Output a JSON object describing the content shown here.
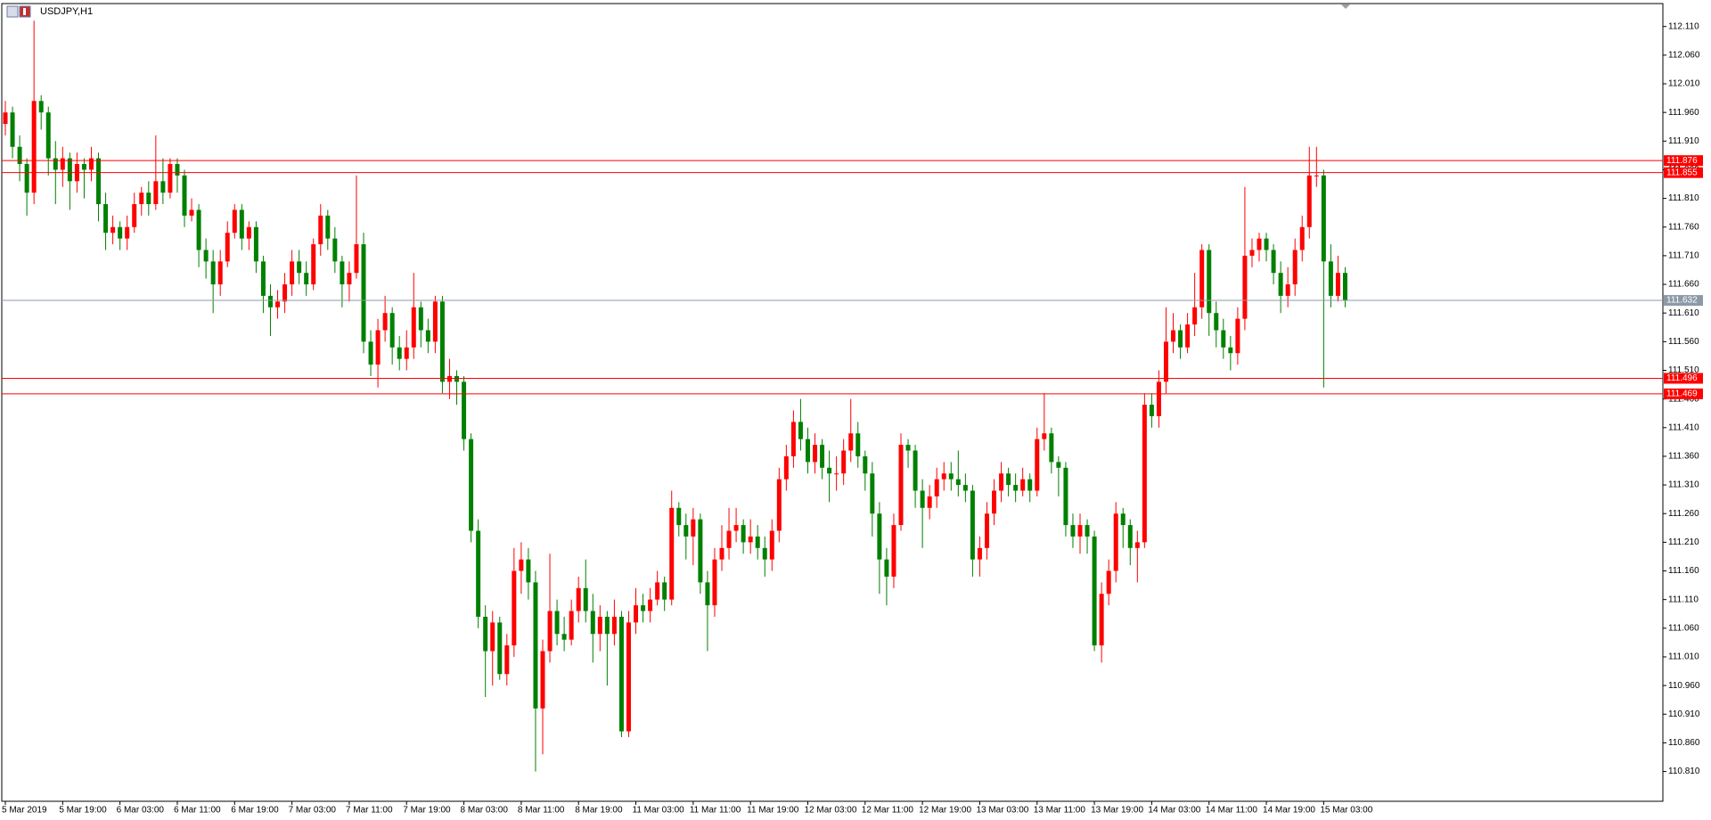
{
  "chart_data": {
    "type": "candlestick",
    "title": "USDJPY,H1",
    "up_color": "#ff0000",
    "down_color": "#008000",
    "ylim": [
      110.758,
      112.15
    ],
    "yticks": [
      {
        "value": 112.11,
        "label": "112.110"
      },
      {
        "value": 112.06,
        "label": "112.060"
      },
      {
        "value": 112.01,
        "label": "112.010"
      },
      {
        "value": 111.96,
        "label": "111.960"
      },
      {
        "value": 111.91,
        "label": "111.910"
      },
      {
        "value": 111.86,
        "label": "111.860"
      },
      {
        "value": 111.81,
        "label": "111.810"
      },
      {
        "value": 111.76,
        "label": "111.760"
      },
      {
        "value": 111.71,
        "label": "111.710"
      },
      {
        "value": 111.66,
        "label": "111.660"
      },
      {
        "value": 111.61,
        "label": "111.610"
      },
      {
        "value": 111.56,
        "label": "111.560"
      },
      {
        "value": 111.51,
        "label": "111.510"
      },
      {
        "value": 111.46,
        "label": "111.460"
      },
      {
        "value": 111.41,
        "label": "111.410"
      },
      {
        "value": 111.36,
        "label": "111.360"
      },
      {
        "value": 111.31,
        "label": "111.310"
      },
      {
        "value": 111.26,
        "label": "111.260"
      },
      {
        "value": 111.21,
        "label": "111.210"
      },
      {
        "value": 111.16,
        "label": "111.160"
      },
      {
        "value": 111.11,
        "label": "111.110"
      },
      {
        "value": 111.06,
        "label": "111.060"
      },
      {
        "value": 111.01,
        "label": "111.010"
      },
      {
        "value": 110.96,
        "label": "110.960"
      },
      {
        "value": 110.91,
        "label": "110.910"
      },
      {
        "value": 110.86,
        "label": "110.860"
      },
      {
        "value": 110.81,
        "label": "110.810"
      }
    ],
    "levels": [
      {
        "value": 111.876,
        "color": "#ff0000"
      },
      {
        "value": 111.855,
        "color": "#ff0000"
      },
      {
        "value": 111.496,
        "color": "#ff0000"
      },
      {
        "value": 111.469,
        "color": "#ff0000"
      },
      {
        "value": 111.632,
        "color": "#8c9aa8"
      }
    ],
    "categories": [
      "5 Mar 2019",
      null,
      null,
      null,
      null,
      null,
      null,
      null,
      "5 Mar 19:00",
      null,
      null,
      null,
      null,
      null,
      null,
      null,
      "6 Mar 03:00",
      null,
      null,
      null,
      null,
      null,
      null,
      null,
      "6 Mar 11:00",
      null,
      null,
      null,
      null,
      null,
      null,
      null,
      "6 Mar 19:00",
      null,
      null,
      null,
      null,
      null,
      null,
      null,
      "7 Mar 03:00",
      null,
      null,
      null,
      null,
      null,
      null,
      null,
      "7 Mar 11:00",
      null,
      null,
      null,
      null,
      null,
      null,
      null,
      "7 Mar 19:00",
      null,
      null,
      null,
      null,
      null,
      null,
      null,
      "8 Mar 03:00",
      null,
      null,
      null,
      null,
      null,
      null,
      null,
      "8 Mar 11:00",
      null,
      null,
      null,
      null,
      null,
      null,
      null,
      "8 Mar 19:00",
      null,
      null,
      null,
      null,
      null,
      null,
      null,
      "11 Mar 03:00",
      null,
      null,
      null,
      null,
      null,
      null,
      null,
      "11 Mar 11:00",
      null,
      null,
      null,
      null,
      null,
      null,
      null,
      "11 Mar 19:00",
      null,
      null,
      null,
      null,
      null,
      null,
      null,
      "12 Mar 03:00",
      null,
      null,
      null,
      null,
      null,
      null,
      null,
      "12 Mar 11:00",
      null,
      null,
      null,
      null,
      null,
      null,
      null,
      "12 Mar 19:00",
      null,
      null,
      null,
      null,
      null,
      null,
      null,
      "13 Mar 03:00",
      null,
      null,
      null,
      null,
      null,
      null,
      null,
      "13 Mar 11:00",
      null,
      null,
      null,
      null,
      null,
      null,
      null,
      "13 Mar 19:00",
      null,
      null,
      null,
      null,
      null,
      null,
      null,
      "14 Mar 03:00",
      null,
      null,
      null,
      null,
      null,
      null,
      null,
      "14 Mar 11:00",
      null,
      null,
      null,
      null,
      null,
      null,
      null,
      "14 Mar 19:00",
      null,
      null,
      null,
      null,
      null,
      null,
      null,
      "15 Mar 03:00",
      null,
      null,
      null
    ],
    "open": [
      111.94,
      111.96,
      111.9,
      111.87,
      111.82,
      111.98,
      111.96,
      111.88,
      111.86,
      111.88,
      111.84,
      111.87,
      111.86,
      111.88,
      111.8,
      111.75,
      111.76,
      111.74,
      111.76,
      111.8,
      111.82,
      111.8,
      111.84,
      111.82,
      111.87,
      111.85,
      111.78,
      111.79,
      111.72,
      111.7,
      111.66,
      111.7,
      111.75,
      111.79,
      111.74,
      111.76,
      111.7,
      111.64,
      111.62,
      111.63,
      111.66,
      111.7,
      111.68,
      111.66,
      111.73,
      111.78,
      111.74,
      111.7,
      111.66,
      111.68,
      111.73,
      111.56,
      111.52,
      111.58,
      111.61,
      111.55,
      111.53,
      111.55,
      111.62,
      111.58,
      111.56,
      111.63,
      111.49,
      111.5,
      111.49,
      111.39,
      111.23,
      111.08,
      111.02,
      111.07,
      110.98,
      111.03,
      111.16,
      111.18,
      111.14,
      110.92,
      111.02,
      111.09,
      111.05,
      111.04,
      111.09,
      111.13,
      111.09,
      111.05,
      111.08,
      111.05,
      111.08,
      110.88,
      111.07,
      111.1,
      111.09,
      111.11,
      111.14,
      111.11,
      111.27,
      111.24,
      111.22,
      111.25,
      111.14,
      111.1,
      111.18,
      111.2,
      111.23,
      111.24,
      111.21,
      111.22,
      111.2,
      111.18,
      111.23,
      111.32,
      111.36,
      111.42,
      111.39,
      111.35,
      111.38,
      111.34,
      111.33,
      111.33,
      111.37,
      111.4,
      111.36,
      111.33,
      111.26,
      111.18,
      111.15,
      111.24,
      111.38,
      111.37,
      111.3,
      111.27,
      111.29,
      111.32,
      111.33,
      111.32,
      111.31,
      111.3,
      111.18,
      111.2,
      111.26,
      111.3,
      111.33,
      111.31,
      111.3,
      111.32,
      111.3,
      111.39,
      111.4,
      111.35,
      111.34,
      111.24,
      111.22,
      111.24,
      111.22,
      111.03,
      111.12,
      111.16,
      111.26,
      111.24,
      111.2,
      111.21,
      111.45,
      111.43,
      111.49,
      111.56,
      111.58,
      111.55,
      111.59,
      111.62,
      111.72,
      111.61,
      111.58,
      111.55,
      111.54,
      111.6,
      111.71,
      111.72,
      111.74,
      111.72,
      111.68,
      111.64,
      111.66,
      111.72,
      111.76,
      111.85,
      111.85,
      111.7,
      111.64,
      111.68
    ],
    "high": [
      111.98,
      111.97,
      111.92,
      111.88,
      112.12,
      111.99,
      111.97,
      111.91,
      111.9,
      111.89,
      111.89,
      111.88,
      111.9,
      111.89,
      111.82,
      111.78,
      111.77,
      111.78,
      111.82,
      111.83,
      111.84,
      111.92,
      111.88,
      111.88,
      111.88,
      111.86,
      111.81,
      111.8,
      111.74,
      111.72,
      111.72,
      111.77,
      111.8,
      111.8,
      111.77,
      111.77,
      111.71,
      111.66,
      111.65,
      111.68,
      111.72,
      111.72,
      111.7,
      111.74,
      111.8,
      111.79,
      111.76,
      111.71,
      111.7,
      111.85,
      111.75,
      111.58,
      111.6,
      111.64,
      111.62,
      111.57,
      111.58,
      111.68,
      111.63,
      111.6,
      111.64,
      111.64,
      111.53,
      111.51,
      111.5,
      111.4,
      111.25,
      111.1,
      111.09,
      111.08,
      111.05,
      111.2,
      111.21,
      111.2,
      111.16,
      111.04,
      111.19,
      111.11,
      111.08,
      111.11,
      111.15,
      111.18,
      111.12,
      111.1,
      111.09,
      111.11,
      111.09,
      111.09,
      111.13,
      111.12,
      111.13,
      111.16,
      111.15,
      111.3,
      111.28,
      111.26,
      111.27,
      111.26,
      111.16,
      111.2,
      111.24,
      111.27,
      111.27,
      111.25,
      111.25,
      111.24,
      111.22,
      111.25,
      111.34,
      111.38,
      111.44,
      111.46,
      111.41,
      111.4,
      111.39,
      111.37,
      111.36,
      111.39,
      111.46,
      111.42,
      111.37,
      111.35,
      111.28,
      111.2,
      111.26,
      111.4,
      111.39,
      111.38,
      111.32,
      111.31,
      111.34,
      111.35,
      111.35,
      111.37,
      111.33,
      111.31,
      111.22,
      111.28,
      111.32,
      111.35,
      111.34,
      111.33,
      111.34,
      111.33,
      111.41,
      111.47,
      111.41,
      111.36,
      111.35,
      111.26,
      111.26,
      111.25,
      111.23,
      111.14,
      111.18,
      111.28,
      111.27,
      111.25,
      111.23,
      111.47,
      111.47,
      111.51,
      111.62,
      111.61,
      111.59,
      111.61,
      111.68,
      111.73,
      111.73,
      111.63,
      111.6,
      111.57,
      111.62,
      111.83,
      111.74,
      111.75,
      111.75,
      111.73,
      111.7,
      111.69,
      111.74,
      111.78,
      111.9,
      111.9,
      111.86,
      111.73,
      111.71,
      111.69
    ],
    "low": [
      111.92,
      111.88,
      111.84,
      111.78,
      111.8,
      111.93,
      111.85,
      111.8,
      111.83,
      111.79,
      111.82,
      111.81,
      111.84,
      111.77,
      111.72,
      111.73,
      111.72,
      111.72,
      111.75,
      111.78,
      111.78,
      111.79,
      111.8,
      111.81,
      111.82,
      111.76,
      111.77,
      111.69,
      111.67,
      111.61,
      111.64,
      111.69,
      111.74,
      111.72,
      111.72,
      111.68,
      111.61,
      111.57,
      111.6,
      111.61,
      111.64,
      111.66,
      111.64,
      111.65,
      111.71,
      111.72,
      111.68,
      111.62,
      111.63,
      111.67,
      111.54,
      111.5,
      111.48,
      111.56,
      111.52,
      111.51,
      111.51,
      111.53,
      111.55,
      111.54,
      111.54,
      111.47,
      111.46,
      111.45,
      111.37,
      111.21,
      111.06,
      110.94,
      110.96,
      110.97,
      110.96,
      111.01,
      111.12,
      111.11,
      110.81,
      110.84,
      111.0,
      111.03,
      111.02,
      111.03,
      111.07,
      111.07,
      111.0,
      111.02,
      110.96,
      111.03,
      110.87,
      110.87,
      111.05,
      111.07,
      111.07,
      111.1,
      111.09,
      111.1,
      111.22,
      111.18,
      111.17,
      111.12,
      111.02,
      111.08,
      111.16,
      111.18,
      111.21,
      111.19,
      111.19,
      111.18,
      111.15,
      111.16,
      111.21,
      111.3,
      111.34,
      111.37,
      111.33,
      111.33,
      111.32,
      111.28,
      111.3,
      111.31,
      111.35,
      111.34,
      111.3,
      111.22,
      111.12,
      111.1,
      111.13,
      111.23,
      111.34,
      111.27,
      111.2,
      111.25,
      111.27,
      111.3,
      111.3,
      111.29,
      111.28,
      111.15,
      111.15,
      111.18,
      111.24,
      111.28,
      111.29,
      111.28,
      111.29,
      111.28,
      111.29,
      111.37,
      111.33,
      111.29,
      111.22,
      111.2,
      111.19,
      111.19,
      111.02,
      111.0,
      111.1,
      111.14,
      111.2,
      111.17,
      111.14,
      111.2,
      111.41,
      111.41,
      111.47,
      111.54,
      111.53,
      111.54,
      111.57,
      111.6,
      111.57,
      111.55,
      111.53,
      111.51,
      111.52,
      111.58,
      111.69,
      111.7,
      111.7,
      111.66,
      111.61,
      111.62,
      111.64,
      111.7,
      111.74,
      111.83,
      111.48,
      111.62,
      111.63,
      111.62
    ],
    "close": [
      111.96,
      111.9,
      111.87,
      111.82,
      111.98,
      111.96,
      111.88,
      111.86,
      111.88,
      111.84,
      111.87,
      111.86,
      111.88,
      111.8,
      111.75,
      111.76,
      111.74,
      111.76,
      111.8,
      111.82,
      111.8,
      111.84,
      111.82,
      111.87,
      111.85,
      111.78,
      111.79,
      111.72,
      111.7,
      111.66,
      111.7,
      111.75,
      111.79,
      111.74,
      111.76,
      111.7,
      111.64,
      111.62,
      111.63,
      111.66,
      111.7,
      111.68,
      111.66,
      111.73,
      111.78,
      111.74,
      111.7,
      111.66,
      111.68,
      111.73,
      111.56,
      111.52,
      111.58,
      111.61,
      111.55,
      111.53,
      111.55,
      111.62,
      111.58,
      111.56,
      111.63,
      111.49,
      111.5,
      111.49,
      111.39,
      111.23,
      111.08,
      111.02,
      111.07,
      110.98,
      111.03,
      111.16,
      111.18,
      111.14,
      110.92,
      111.02,
      111.09,
      111.05,
      111.04,
      111.09,
      111.13,
      111.09,
      111.05,
      111.08,
      111.05,
      111.08,
      110.88,
      111.07,
      111.1,
      111.09,
      111.11,
      111.14,
      111.11,
      111.27,
      111.24,
      111.22,
      111.25,
      111.14,
      111.1,
      111.18,
      111.2,
      111.23,
      111.24,
      111.21,
      111.22,
      111.2,
      111.18,
      111.23,
      111.32,
      111.36,
      111.42,
      111.39,
      111.35,
      111.38,
      111.34,
      111.33,
      111.33,
      111.37,
      111.4,
      111.36,
      111.33,
      111.26,
      111.18,
      111.15,
      111.24,
      111.38,
      111.37,
      111.3,
      111.27,
      111.29,
      111.32,
      111.33,
      111.32,
      111.31,
      111.3,
      111.18,
      111.2,
      111.26,
      111.3,
      111.33,
      111.31,
      111.3,
      111.32,
      111.3,
      111.39,
      111.4,
      111.35,
      111.34,
      111.24,
      111.22,
      111.24,
      111.22,
      111.03,
      111.12,
      111.16,
      111.26,
      111.24,
      111.2,
      111.21,
      111.45,
      111.43,
      111.49,
      111.56,
      111.58,
      111.55,
      111.59,
      111.62,
      111.72,
      111.61,
      111.58,
      111.55,
      111.54,
      111.6,
      111.71,
      111.72,
      111.74,
      111.72,
      111.68,
      111.64,
      111.66,
      111.72,
      111.76,
      111.85,
      111.85,
      111.7,
      111.64,
      111.68,
      111.632
    ]
  }
}
